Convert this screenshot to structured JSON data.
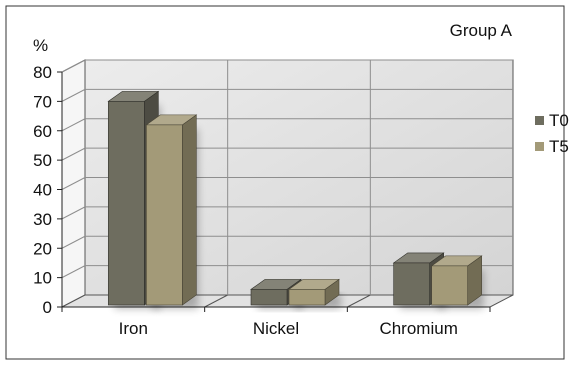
{
  "chart_data": {
    "type": "bar",
    "title": "Group A",
    "ylabel": "%",
    "xlabel": "",
    "ylim": [
      0,
      80
    ],
    "yticks": [
      0,
      10,
      20,
      30,
      40,
      50,
      60,
      70,
      80
    ],
    "categories": [
      "Iron",
      "Nickel",
      "Chromium"
    ],
    "series": [
      {
        "name": "T0",
        "values": [
          70,
          6,
          15
        ],
        "color": "#6e6d5f"
      },
      {
        "name": "T5",
        "values": [
          62,
          6,
          14
        ],
        "color": "#a39a78"
      }
    ],
    "legend_position": "right",
    "grid": true,
    "three_d": true
  }
}
